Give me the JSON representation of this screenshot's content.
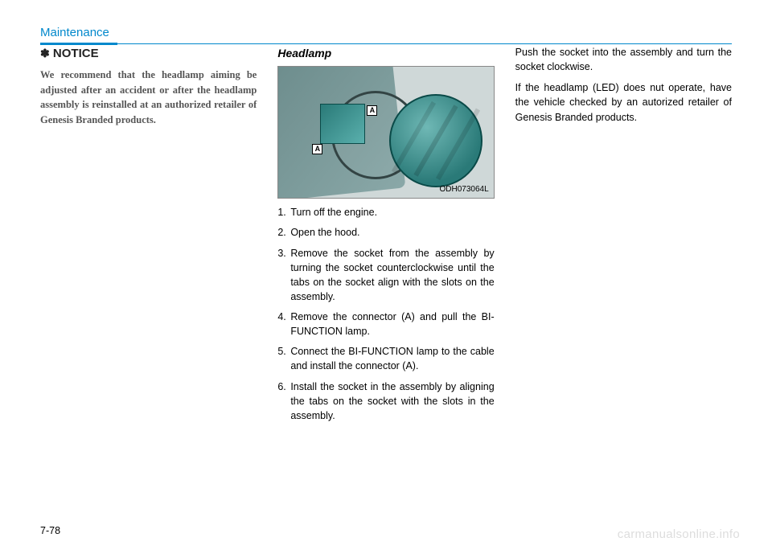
{
  "header": {
    "section_title": "Maintenance"
  },
  "col1": {
    "notice_star": "✽",
    "notice_label": "NOTICE",
    "notice_text": "We recommend that the headlamp aiming be adjusted after an accident or after the headlamp assembly is reinstalled at an authorized retailer of Genesis Branded products."
  },
  "col2": {
    "subheading": "Headlamp",
    "figure_code": "ODH073064L",
    "marker_label": "A",
    "steps": [
      "Turn off the engine.",
      "Open the hood.",
      "Remove the socket from the assembly by turning the socket counterclockwise until the tabs on the socket align with the slots on the assembly.",
      "Remove the connector (A) and pull the BI-FUNCTION lamp.",
      "Connect the BI-FUNCTION lamp to the cable and install the connector (A).",
      "Install the socket in the assembly by aligning the tabs on the socket with the slots in the assembly."
    ]
  },
  "col3": {
    "para1": "Push the socket into the assembly and turn the socket clockwise.",
    "para2": "If the headlamp (LED) does nut operate, have the vehicle checked by an autorized retailer of Genesis Branded products."
  },
  "footer": {
    "page_number": "7-78",
    "watermark": "carmanualsonline.info"
  }
}
